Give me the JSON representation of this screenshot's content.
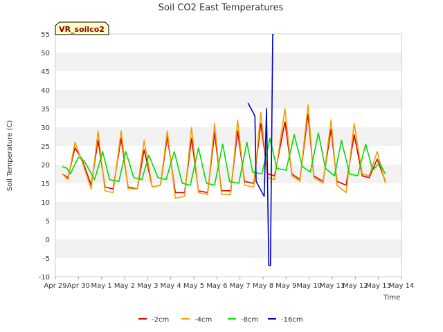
{
  "chart_data": {
    "type": "line",
    "title": "Soil CO2 East Temperatures",
    "xlabel": "Time",
    "ylabel": "Soil Temperature (C)",
    "site_label": "VR_soilco2",
    "ylim": [
      -10,
      55
    ],
    "yticks": [
      -10,
      -5,
      0,
      5,
      10,
      15,
      20,
      25,
      30,
      35,
      40,
      45,
      50,
      55
    ],
    "xlim": [
      0,
      15
    ],
    "xticks": [
      {
        "value": 0,
        "label": "Apr 29"
      },
      {
        "value": 1,
        "label": "Apr 30"
      },
      {
        "value": 2,
        "label": "May 1"
      },
      {
        "value": 3,
        "label": "May 2"
      },
      {
        "value": 4,
        "label": "May 3"
      },
      {
        "value": 5,
        "label": "May 4"
      },
      {
        "value": 6,
        "label": "May 5"
      },
      {
        "value": 7,
        "label": "May 6"
      },
      {
        "value": 8,
        "label": "May 7"
      },
      {
        "value": 9,
        "label": "May 8"
      },
      {
        "value": 10,
        "label": "May 9"
      },
      {
        "value": 11,
        "label": "May 10"
      },
      {
        "value": 12,
        "label": "May 11"
      },
      {
        "value": 13,
        "label": "May 12"
      },
      {
        "value": 14,
        "label": "May 13"
      },
      {
        "value": 15,
        "label": "May 14"
      }
    ],
    "grid": "horizontal alternating bands",
    "legend_position": "bottom-center",
    "series": [
      {
        "name": "-2cm",
        "color": "#dd0000",
        "x": [
          0.3,
          0.55,
          0.85,
          1.15,
          1.55,
          1.85,
          2.15,
          2.5,
          2.85,
          3.15,
          3.55,
          3.85,
          4.2,
          4.55,
          4.85,
          5.2,
          5.6,
          5.9,
          6.2,
          6.6,
          6.9,
          7.2,
          7.6,
          7.9,
          8.2,
          8.6,
          8.9,
          9.2,
          9.5,
          9.95,
          10.25,
          10.6,
          10.95,
          11.2,
          11.6,
          11.95,
          12.2,
          12.6,
          12.95,
          13.3,
          13.6,
          13.95,
          14.3
        ],
        "y": [
          17.5,
          16.5,
          24.5,
          21.5,
          14.5,
          26.5,
          14.0,
          13.5,
          27.0,
          14.0,
          13.5,
          24.0,
          14.0,
          14.5,
          27.5,
          12.5,
          12.5,
          27.0,
          13.0,
          12.5,
          28.5,
          13.0,
          13.0,
          29.0,
          15.5,
          15.0,
          31.0,
          17.5,
          17.0,
          31.5,
          17.5,
          16.0,
          33.5,
          17.0,
          15.5,
          29.5,
          15.5,
          14.5,
          28.0,
          17.0,
          16.5,
          21.5,
          15.5
        ]
      },
      {
        "name": "-4cm",
        "color": "#f0a000",
        "x": [
          0.3,
          0.55,
          0.85,
          1.15,
          1.55,
          1.85,
          2.15,
          2.5,
          2.85,
          3.15,
          3.55,
          3.85,
          4.2,
          4.55,
          4.85,
          5.2,
          5.6,
          5.9,
          6.2,
          6.6,
          6.9,
          7.2,
          7.6,
          7.9,
          8.2,
          8.6,
          8.9,
          9.2,
          9.5,
          9.95,
          10.25,
          10.6,
          10.95,
          11.2,
          11.6,
          11.95,
          12.2,
          12.6,
          12.95,
          13.3,
          13.6,
          13.95,
          14.3
        ],
        "y": [
          17.5,
          16.0,
          26.0,
          21.0,
          13.5,
          29.0,
          13.0,
          12.5,
          29.0,
          13.5,
          13.5,
          26.5,
          14.0,
          14.5,
          29.0,
          11.0,
          11.5,
          30.0,
          12.5,
          12.0,
          31.0,
          12.0,
          12.0,
          32.0,
          14.5,
          14.0,
          34.0,
          16.5,
          16.0,
          35.0,
          17.0,
          15.5,
          36.0,
          16.5,
          15.0,
          32.0,
          14.5,
          12.5,
          31.0,
          17.5,
          17.0,
          23.5,
          15.0
        ]
      },
      {
        "name": "-8cm",
        "color": "#00dd00",
        "x": [
          0.3,
          0.5,
          0.65,
          1.0,
          1.25,
          1.7,
          2.05,
          2.35,
          2.75,
          3.05,
          3.4,
          3.75,
          4.05,
          4.45,
          4.8,
          5.15,
          5.5,
          5.85,
          6.2,
          6.55,
          6.9,
          7.25,
          7.55,
          7.95,
          8.3,
          8.55,
          8.95,
          9.3,
          9.6,
          10.0,
          10.35,
          10.7,
          11.05,
          11.4,
          11.7,
          12.1,
          12.4,
          12.75,
          13.1,
          13.45,
          13.75,
          14.05,
          14.3
        ],
        "y": [
          19.5,
          19.0,
          17.5,
          22.0,
          21.0,
          16.0,
          23.5,
          16.0,
          15.5,
          23.5,
          16.5,
          16.0,
          22.5,
          16.5,
          16.0,
          23.5,
          15.0,
          14.5,
          24.5,
          15.0,
          14.5,
          25.5,
          15.5,
          15.0,
          26.0,
          18.0,
          17.5,
          27.0,
          19.0,
          18.5,
          28.0,
          19.5,
          18.0,
          28.5,
          19.0,
          17.0,
          26.5,
          17.5,
          17.0,
          25.5,
          18.5,
          20.5,
          17.5
        ]
      },
      {
        "name": "-16cm",
        "color": "#0000cc",
        "x": [
          8.35,
          8.65,
          8.7,
          9.05,
          9.15,
          9.25,
          9.32,
          9.42,
          9.48
        ],
        "y": [
          36.5,
          33.0,
          15.5,
          11.5,
          35.0,
          -7.0,
          -7.0,
          55.0,
          55.0
        ]
      }
    ]
  }
}
